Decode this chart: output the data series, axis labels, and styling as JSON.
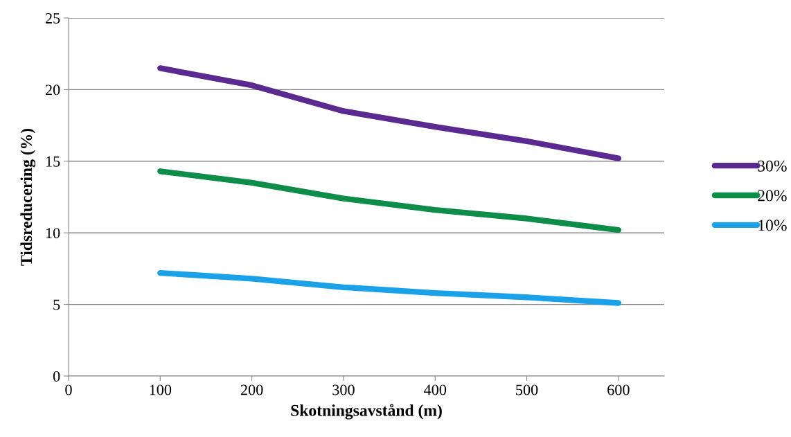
{
  "chart_data": {
    "type": "line",
    "xlabel": "Skotningsavstånd (m)",
    "ylabel": "Tidsreducering (%)",
    "x": [
      100,
      200,
      300,
      400,
      500,
      600
    ],
    "series": [
      {
        "name": "30%",
        "color": "#5b2a91",
        "values": [
          21.5,
          20.3,
          18.5,
          17.4,
          16.4,
          15.2
        ]
      },
      {
        "name": "20%",
        "color": "#0e8c4a",
        "values": [
          14.3,
          13.5,
          12.4,
          11.6,
          11.0,
          10.2
        ]
      },
      {
        "name": "10%",
        "color": "#1ba1e8",
        "values": [
          7.2,
          6.8,
          6.2,
          5.8,
          5.5,
          5.1
        ]
      }
    ],
    "xlim": [
      0,
      650
    ],
    "xticks": [
      0,
      100,
      200,
      300,
      400,
      500,
      600
    ],
    "ylim": [
      0,
      25
    ],
    "yticks": [
      0,
      5,
      10,
      15,
      20,
      25
    ],
    "grid": "y",
    "legend": "right",
    "marker": "none",
    "line_style": "solid"
  }
}
